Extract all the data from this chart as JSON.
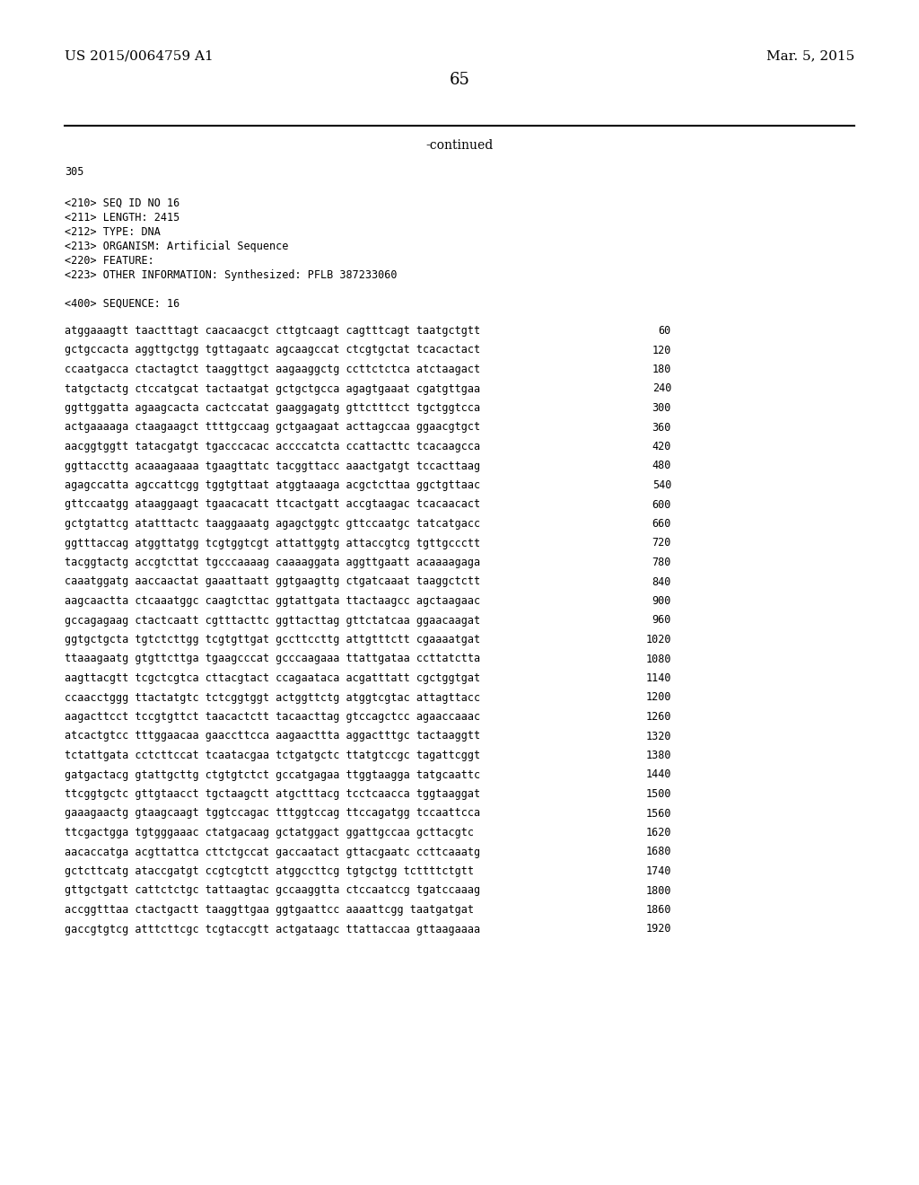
{
  "header_left": "US 2015/0064759 A1",
  "header_right": "Mar. 5, 2015",
  "page_number": "65",
  "continued_text": "-continued",
  "seq_number": "305",
  "metadata": [
    "<210> SEQ ID NO 16",
    "<211> LENGTH: 2415",
    "<212> TYPE: DNA",
    "<213> ORGANISM: Artificial Sequence",
    "<220> FEATURE:",
    "<223> OTHER INFORMATION: Synthesized: PFLB 387233060"
  ],
  "sequence_header": "<400> SEQUENCE: 16",
  "sequence_lines": [
    [
      "atggaaagtt taactttagt caacaacgct cttgtcaagt cagtttcagt taatgctgtt",
      "60"
    ],
    [
      "gctgccacta aggttgctgg tgttagaatc agcaagccat ctcgtgctat tcacactact",
      "120"
    ],
    [
      "ccaatgacca ctactagtct taaggttgct aagaaggctg ccttctctca atctaagact",
      "180"
    ],
    [
      "tatgctactg ctccatgcat tactaatgat gctgctgcca agagtgaaat cgatgttgaa",
      "240"
    ],
    [
      "ggttggatta agaagcacta cactccatat gaaggagatg gttctttcct tgctggtcca",
      "300"
    ],
    [
      "actgaaaaga ctaagaagct ttttgccaag gctgaagaat acttagccaa ggaacgtgct",
      "360"
    ],
    [
      "aacggtggtt tatacgatgt tgacccacac accccatcta ccattacttc tcacaagcca",
      "420"
    ],
    [
      "ggttaccttg acaaagaaaa tgaagttatc tacggttacc aaactgatgt tccacttaag",
      "480"
    ],
    [
      "agagccatta agccattcgg tggtgttaat atggtaaaga acgctcttaa ggctgttaac",
      "540"
    ],
    [
      "gttccaatgg ataaggaagt tgaacacatt ttcactgatt accgtaagac tcacaacact",
      "600"
    ],
    [
      "gctgtattcg atatttactc taaggaaatg agagctggtc gttccaatgc tatcatgacc",
      "660"
    ],
    [
      "ggtttaccag atggttatgg tcgtggtcgt attattggtg attaccgtcg tgttgccctt",
      "720"
    ],
    [
      "tacggtactg accgtcttat tgcccaaaag caaaaggata aggttgaatt acaaaagaga",
      "780"
    ],
    [
      "caaatggatg aaccaactat gaaattaatt ggtgaagttg ctgatcaaat taaggctctt",
      "840"
    ],
    [
      "aagcaactta ctcaaatggc caagtcttac ggtattgata ttactaagcc agctaagaac",
      "900"
    ],
    [
      "gccagagaag ctactcaatt cgtttacttc ggttacttag gttctatcaa ggaacaagat",
      "960"
    ],
    [
      "ggtgctgcta tgtctcttgg tcgtgttgat gccttccttg attgtttctt cgaaaatgat",
      "1020"
    ],
    [
      "ttaaagaatg gtgttcttga tgaagcccat gcccaagaaa ttattgataa ccttatctta",
      "1080"
    ],
    [
      "aagttacgtt tcgctcgtca cttacgtact ccagaataca acgatttatt cgctggtgat",
      "1140"
    ],
    [
      "ccaacctggg ttactatgtc tctcggtggt actggttctg atggtcgtac attagttacc",
      "1200"
    ],
    [
      "aagacttcct tccgtgttct taacactctt tacaacttag gtccagctcc agaaccaaac",
      "1260"
    ],
    [
      "atcactgtcc tttggaacaa gaaccttcca aagaacttta aggactttgc tactaaggtt",
      "1320"
    ],
    [
      "tctattgata cctcttccat tcaatacgaa tctgatgctc ttatgtccgc tagattcggt",
      "1380"
    ],
    [
      "gatgactacg gtattgcttg ctgtgtctct gccatgagaa ttggtaagga tatgcaattc",
      "1440"
    ],
    [
      "ttcggtgctc gttgtaacct tgctaagctt atgctttacg tcctcaacca tggtaaggat",
      "1500"
    ],
    [
      "gaaagaactg gtaagcaagt tggtccagac tttggtccag ttccagatgg tccaattcca",
      "1560"
    ],
    [
      "ttcgactgga tgtgggaaac ctatgacaag gctatggact ggattgccaa gcttacgtc",
      "1620"
    ],
    [
      "aacaccatga acgttattca cttctgccat gaccaatact gttacgaatc ccttcaaatg",
      "1680"
    ],
    [
      "gctcttcatg ataccgatgt ccgtcgtctt atggccttcg tgtgctgg tcttttctgtt",
      "1740"
    ],
    [
      "gttgctgatt cattctctgc tattaagtac gccaaggtta ctccaatccg tgatccaaag",
      "1800"
    ],
    [
      "accggtttaa ctactgactt taaggttgaa ggtgaattcc aaaattcgg taatgatgat",
      "1860"
    ],
    [
      "gaccgtgtcg atttcttcgc tcgtaccgtt actgataagc ttattaccaa gttaagaaaa",
      "1920"
    ]
  ],
  "bg_color": "#ffffff",
  "text_color": "#000000",
  "font_size_header": 11.0,
  "font_size_body": 8.5,
  "font_size_page_num": 13.0,
  "font_size_continued": 10.0
}
